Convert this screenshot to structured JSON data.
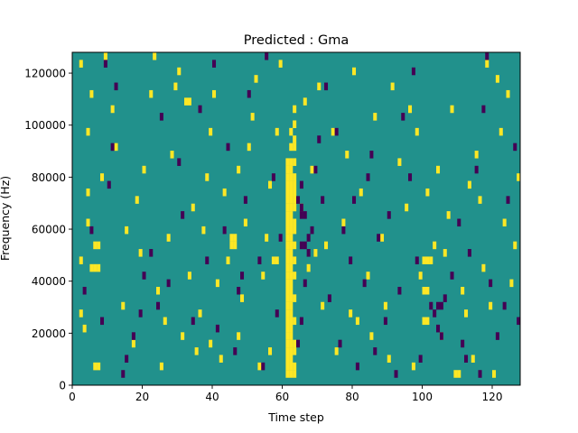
{
  "chart_data": {
    "type": "heatmap",
    "title": "Predicted : Gma",
    "xlabel": "Time step",
    "ylabel": "Frequency (Hz)",
    "xlim": [
      0,
      128
    ],
    "ylim": [
      0,
      128000
    ],
    "xticks": [
      0,
      20,
      40,
      60,
      80,
      100,
      120
    ],
    "yticks": [
      0,
      20000,
      40000,
      60000,
      80000,
      100000,
      120000
    ],
    "n_time_steps": 128,
    "n_freq_bins": 44,
    "background_value": 0,
    "value_levels": [
      -1,
      0,
      1
    ],
    "colors": {
      "-1": "#440154",
      "0": "#21918c",
      "1": "#fde725"
    },
    "grid": false,
    "cells": [
      [
        61,
        1,
        1
      ],
      [
        62,
        1,
        1
      ],
      [
        63,
        1,
        1
      ],
      [
        61,
        2,
        1
      ],
      [
        62,
        2,
        1
      ],
      [
        63,
        2,
        1
      ],
      [
        61,
        3,
        1
      ],
      [
        62,
        3,
        1
      ],
      [
        61,
        4,
        1
      ],
      [
        62,
        4,
        1
      ],
      [
        63,
        4,
        1
      ],
      [
        61,
        5,
        1
      ],
      [
        62,
        5,
        1
      ],
      [
        63,
        5,
        1
      ],
      [
        61,
        6,
        1
      ],
      [
        62,
        6,
        1
      ],
      [
        61,
        7,
        1
      ],
      [
        62,
        7,
        1
      ],
      [
        61,
        8,
        1
      ],
      [
        62,
        8,
        1
      ],
      [
        63,
        8,
        1
      ],
      [
        61,
        9,
        1
      ],
      [
        62,
        9,
        1
      ],
      [
        61,
        10,
        1
      ],
      [
        62,
        10,
        1
      ],
      [
        61,
        11,
        1
      ],
      [
        62,
        11,
        1
      ],
      [
        63,
        11,
        1
      ],
      [
        61,
        12,
        1
      ],
      [
        62,
        12,
        1
      ],
      [
        61,
        13,
        1
      ],
      [
        62,
        13,
        1
      ],
      [
        61,
        14,
        1
      ],
      [
        62,
        14,
        1
      ],
      [
        63,
        14,
        1
      ],
      [
        61,
        15,
        1
      ],
      [
        62,
        15,
        1
      ],
      [
        61,
        16,
        1
      ],
      [
        62,
        16,
        1
      ],
      [
        63,
        16,
        1
      ],
      [
        61,
        17,
        1
      ],
      [
        62,
        17,
        1
      ],
      [
        61,
        18,
        1
      ],
      [
        62,
        18,
        1
      ],
      [
        63,
        18,
        1
      ],
      [
        61,
        19,
        1
      ],
      [
        62,
        19,
        1
      ],
      [
        61,
        20,
        1
      ],
      [
        62,
        20,
        1
      ],
      [
        63,
        20,
        1
      ],
      [
        61,
        21,
        1
      ],
      [
        62,
        21,
        1
      ],
      [
        63,
        21,
        1
      ],
      [
        61,
        22,
        1
      ],
      [
        62,
        22,
        1
      ],
      [
        61,
        23,
        1
      ],
      [
        62,
        23,
        1
      ],
      [
        63,
        23,
        1
      ],
      [
        61,
        24,
        1
      ],
      [
        62,
        24,
        1
      ],
      [
        63,
        24,
        1
      ],
      [
        61,
        25,
        1
      ],
      [
        62,
        25,
        1
      ],
      [
        63,
        25,
        1
      ],
      [
        61,
        26,
        1
      ],
      [
        62,
        26,
        1
      ],
      [
        63,
        26,
        1
      ],
      [
        61,
        27,
        1
      ],
      [
        62,
        27,
        1
      ],
      [
        63,
        27,
        1
      ],
      [
        61,
        28,
        1
      ],
      [
        62,
        28,
        1
      ],
      [
        61,
        29,
        1
      ],
      [
        62,
        29,
        1
      ],
      [
        63,
        29,
        1
      ],
      [
        62,
        31,
        1
      ],
      [
        63,
        31,
        1
      ],
      [
        63,
        32,
        1
      ],
      [
        62,
        33,
        1
      ],
      [
        63,
        34,
        1
      ],
      [
        63,
        36,
        1
      ],
      [
        5,
        15,
        1
      ],
      [
        6,
        15,
        1
      ],
      [
        7,
        15,
        1
      ],
      [
        6,
        18,
        1
      ],
      [
        7,
        18,
        1
      ],
      [
        100,
        12,
        1
      ],
      [
        101,
        12,
        1
      ],
      [
        100,
        16,
        1
      ],
      [
        101,
        16,
        1
      ],
      [
        102,
        16,
        1
      ],
      [
        100,
        8,
        1
      ],
      [
        101,
        8,
        1
      ],
      [
        57,
        16,
        1
      ],
      [
        58,
        16,
        1
      ],
      [
        45,
        18,
        1
      ],
      [
        46,
        18,
        1
      ],
      [
        32,
        37,
        1
      ],
      [
        33,
        37,
        1
      ],
      [
        6,
        2,
        1
      ],
      [
        7,
        2,
        1
      ],
      [
        109,
        1,
        1
      ],
      [
        110,
        1,
        1
      ],
      [
        45,
        19,
        1
      ],
      [
        46,
        19,
        1
      ],
      [
        3,
        7,
        1
      ],
      [
        2,
        16,
        1
      ],
      [
        4,
        21,
        1
      ],
      [
        4,
        25,
        1
      ],
      [
        2,
        9,
        1
      ],
      [
        8,
        27,
        1
      ],
      [
        12,
        31,
        1
      ],
      [
        4,
        33,
        1
      ],
      [
        5,
        38,
        1
      ],
      [
        9,
        43,
        1
      ],
      [
        14,
        10,
        1
      ],
      [
        15,
        20,
        1
      ],
      [
        17,
        5,
        1
      ],
      [
        19,
        17,
        1
      ],
      [
        20,
        28,
        1
      ],
      [
        22,
        38,
        1
      ],
      [
        23,
        43,
        1
      ],
      [
        24,
        12,
        1
      ],
      [
        25,
        2,
        1
      ],
      [
        26,
        8,
        1
      ],
      [
        27,
        19,
        1
      ],
      [
        28,
        30,
        1
      ],
      [
        29,
        39,
        1
      ],
      [
        30,
        41,
        1
      ],
      [
        31,
        6,
        1
      ],
      [
        33,
        14,
        1
      ],
      [
        34,
        23,
        1
      ],
      [
        35,
        4,
        1
      ],
      [
        36,
        9,
        1
      ],
      [
        37,
        20,
        1
      ],
      [
        38,
        27,
        1
      ],
      [
        39,
        33,
        1
      ],
      [
        40,
        38,
        1
      ],
      [
        41,
        13,
        1
      ],
      [
        42,
        3,
        1
      ],
      [
        43,
        25,
        1
      ],
      [
        44,
        16,
        1
      ],
      [
        47,
        6,
        1
      ],
      [
        48,
        11,
        1
      ],
      [
        49,
        21,
        1
      ],
      [
        50,
        31,
        1
      ],
      [
        51,
        35,
        1
      ],
      [
        52,
        40,
        1
      ],
      [
        53,
        2,
        1
      ],
      [
        54,
        14,
        1
      ],
      [
        55,
        19,
        1
      ],
      [
        56,
        26,
        1
      ],
      [
        58,
        33,
        1
      ],
      [
        59,
        42,
        1
      ],
      [
        65,
        23,
        1
      ],
      [
        66,
        37,
        1
      ],
      [
        67,
        15,
        1
      ],
      [
        68,
        28,
        1
      ],
      [
        70,
        39,
        1
      ],
      [
        71,
        10,
        1
      ],
      [
        72,
        18,
        1
      ],
      [
        74,
        33,
        1
      ],
      [
        75,
        4,
        1
      ],
      [
        77,
        21,
        1
      ],
      [
        78,
        30,
        1
      ],
      [
        79,
        9,
        1
      ],
      [
        80,
        41,
        1
      ],
      [
        82,
        25,
        1
      ],
      [
        84,
        14,
        1
      ],
      [
        85,
        6,
        1
      ],
      [
        86,
        35,
        1
      ],
      [
        88,
        19,
        1
      ],
      [
        89,
        10,
        1
      ],
      [
        90,
        3,
        1
      ],
      [
        91,
        39,
        1
      ],
      [
        93,
        29,
        1
      ],
      [
        95,
        23,
        1
      ],
      [
        97,
        2,
        1
      ],
      [
        98,
        33,
        1
      ],
      [
        99,
        14,
        1
      ],
      [
        101,
        25,
        1
      ],
      [
        103,
        18,
        1
      ],
      [
        104,
        28,
        1
      ],
      [
        105,
        6,
        1
      ],
      [
        106,
        17,
        1
      ],
      [
        107,
        22,
        1
      ],
      [
        108,
        36,
        1
      ],
      [
        111,
        12,
        1
      ],
      [
        113,
        26,
        1
      ],
      [
        114,
        3,
        1
      ],
      [
        115,
        30,
        1
      ],
      [
        117,
        15,
        1
      ],
      [
        118,
        42,
        1
      ],
      [
        119,
        10,
        1
      ],
      [
        120,
        1,
        1
      ],
      [
        122,
        33,
        1
      ],
      [
        123,
        21,
        1
      ],
      [
        124,
        38,
        1
      ],
      [
        125,
        13,
        1
      ],
      [
        126,
        18,
        1
      ],
      [
        127,
        27,
        1
      ],
      [
        2,
        42,
        1
      ],
      [
        11,
        36,
        1
      ],
      [
        18,
        24,
        1
      ],
      [
        39,
        5,
        1
      ],
      [
        47,
        28,
        1
      ],
      [
        56,
        4,
        1
      ],
      [
        69,
        17,
        1
      ],
      [
        81,
        8,
        1
      ],
      [
        96,
        36,
        1
      ],
      [
        112,
        9,
        1
      ],
      [
        116,
        24,
        1
      ],
      [
        121,
        40,
        1
      ],
      [
        14,
        1,
        -1
      ],
      [
        15,
        3,
        -1
      ],
      [
        17,
        6,
        -1
      ],
      [
        19,
        9,
        -1
      ],
      [
        20,
        14,
        -1
      ],
      [
        22,
        17,
        -1
      ],
      [
        3,
        12,
        -1
      ],
      [
        5,
        20,
        -1
      ],
      [
        8,
        8,
        -1
      ],
      [
        11,
        31,
        -1
      ],
      [
        12,
        39,
        -1
      ],
      [
        9,
        42,
        -1
      ],
      [
        24,
        10,
        -1
      ],
      [
        27,
        13,
        -1
      ],
      [
        30,
        29,
        -1
      ],
      [
        34,
        8,
        -1
      ],
      [
        36,
        36,
        -1
      ],
      [
        38,
        16,
        -1
      ],
      [
        41,
        7,
        -1
      ],
      [
        43,
        20,
        -1
      ],
      [
        44,
        31,
        -1
      ],
      [
        46,
        4,
        -1
      ],
      [
        47,
        12,
        -1
      ],
      [
        48,
        14,
        -1
      ],
      [
        49,
        24,
        -1
      ],
      [
        50,
        38,
        -1
      ],
      [
        53,
        16,
        -1
      ],
      [
        54,
        2,
        -1
      ],
      [
        57,
        27,
        -1
      ],
      [
        59,
        19,
        -1
      ],
      [
        64,
        5,
        -1
      ],
      [
        65,
        8,
        -1
      ],
      [
        66,
        13,
        -1
      ],
      [
        67,
        17,
        -1
      ],
      [
        65,
        18,
        -1
      ],
      [
        66,
        18,
        -1
      ],
      [
        67,
        19,
        -1
      ],
      [
        65,
        22,
        -1
      ],
      [
        66,
        22,
        -1
      ],
      [
        65,
        23,
        -1
      ],
      [
        64,
        24,
        -1
      ],
      [
        65,
        26,
        -1
      ],
      [
        68,
        20,
        -1
      ],
      [
        69,
        28,
        -1
      ],
      [
        70,
        32,
        -1
      ],
      [
        71,
        24,
        -1
      ],
      [
        72,
        39,
        -1
      ],
      [
        73,
        11,
        -1
      ],
      [
        76,
        5,
        -1
      ],
      [
        77,
        20,
        -1
      ],
      [
        79,
        16,
        -1
      ],
      [
        80,
        24,
        -1
      ],
      [
        81,
        2,
        -1
      ],
      [
        83,
        13,
        -1
      ],
      [
        85,
        30,
        -1
      ],
      [
        86,
        4,
        -1
      ],
      [
        87,
        19,
        -1
      ],
      [
        89,
        8,
        -1
      ],
      [
        90,
        22,
        -1
      ],
      [
        92,
        1,
        -1
      ],
      [
        93,
        12,
        -1
      ],
      [
        94,
        35,
        -1
      ],
      [
        96,
        27,
        -1
      ],
      [
        98,
        16,
        -1
      ],
      [
        99,
        3,
        -1
      ],
      [
        102,
        10,
        -1
      ],
      [
        103,
        9,
        -1
      ],
      [
        104,
        10,
        -1
      ],
      [
        105,
        10,
        -1
      ],
      [
        106,
        11,
        -1
      ],
      [
        104,
        7,
        -1
      ],
      [
        105,
        6,
        -1
      ],
      [
        108,
        14,
        -1
      ],
      [
        110,
        21,
        -1
      ],
      [
        111,
        5,
        -1
      ],
      [
        112,
        3,
        -1
      ],
      [
        113,
        17,
        -1
      ],
      [
        115,
        28,
        -1
      ],
      [
        116,
        1,
        -1
      ],
      [
        117,
        36,
        -1
      ],
      [
        119,
        13,
        -1
      ],
      [
        121,
        6,
        -1
      ],
      [
        123,
        10,
        -1
      ],
      [
        124,
        24,
        -1
      ],
      [
        126,
        31,
        -1
      ],
      [
        127,
        8,
        -1
      ],
      [
        10,
        26,
        -1
      ],
      [
        25,
        35,
        -1
      ],
      [
        40,
        42,
        -1
      ],
      [
        55,
        43,
        -1
      ],
      [
        75,
        33,
        -1
      ],
      [
        97,
        41,
        -1
      ],
      [
        118,
        43,
        -1
      ],
      [
        31,
        22,
        -1
      ],
      [
        58,
        9,
        -1
      ],
      [
        84,
        27,
        -1
      ]
    ]
  }
}
